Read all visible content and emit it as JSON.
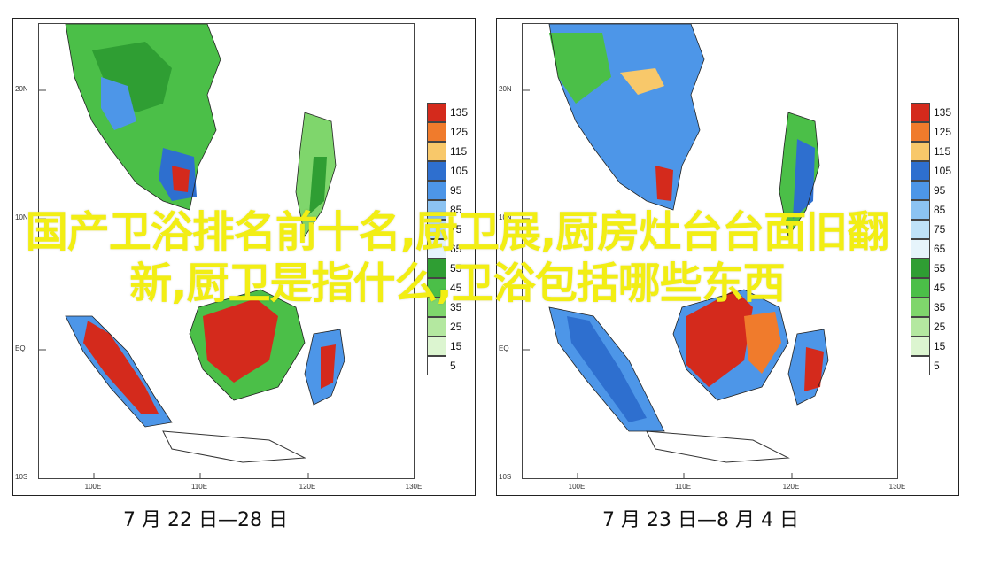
{
  "overlay_title": "国产卫浴排名前十名,厨卫展,厨房灶台台面旧翻新,厨卫是指什么,卫浴包括哪些东西",
  "axes": {
    "lat_labels": [
      "20N",
      "10N",
      "EQ",
      "10S"
    ],
    "lon_labels": [
      "100E",
      "110E",
      "120E",
      "130E"
    ]
  },
  "colorbar": {
    "levels": [
      "135",
      "125",
      "115",
      "105",
      "95",
      "85",
      "75",
      "65",
      "55",
      "45",
      "35",
      "25",
      "15",
      "5"
    ],
    "colors": [
      "#d42a1c",
      "#f07b2c",
      "#f8c86a",
      "#2e6fcf",
      "#4d96e8",
      "#8cc3f2",
      "#bfe2f8",
      "#e6f4fb",
      "#2f9e33",
      "#4bbf48",
      "#7fd66c",
      "#b4e8a0",
      "#dcf5d0",
      "#ffffff"
    ]
  },
  "panels": [
    {
      "caption": "7 月 22 日—28 日"
    },
    {
      "caption": "7 月 23 日—8 月 4 日"
    }
  ]
}
